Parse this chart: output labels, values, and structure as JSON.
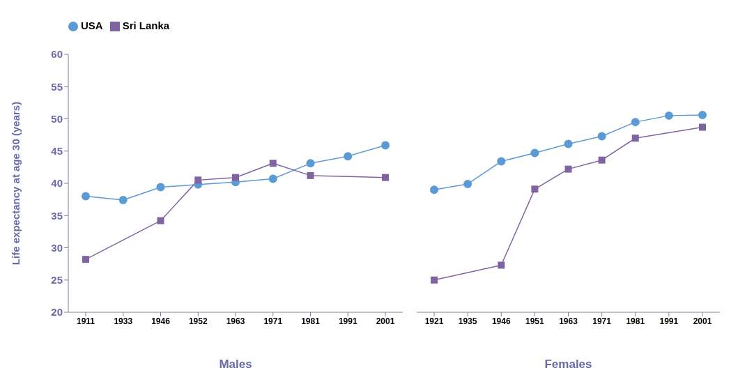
{
  "chart_data": [
    {
      "type": "line",
      "ylabel": "Life expectancy at age 30 (years)",
      "xlabel": "Males",
      "categories": [
        "1911",
        "1933",
        "1946",
        "1952",
        "1963",
        "1971",
        "1981",
        "1991",
        "2001"
      ],
      "ylim": [
        20,
        60
      ],
      "yticks": [
        20,
        25,
        30,
        35,
        40,
        45,
        50,
        55,
        60
      ],
      "legend": "top left",
      "grid": false,
      "series": [
        {
          "name": "USA",
          "color": "#5b9bd5",
          "marker": "circle",
          "values": [
            38.0,
            37.4,
            39.4,
            39.8,
            40.2,
            40.7,
            43.1,
            44.2,
            45.9
          ]
        },
        {
          "name": "Sri Lanka",
          "color": "#8064a2",
          "marker": "square",
          "values": [
            28.2,
            null,
            34.2,
            40.5,
            40.9,
            43.1,
            41.2,
            null,
            40.9
          ]
        }
      ]
    },
    {
      "type": "line",
      "xlabel": "Females",
      "categories": [
        "1921",
        "1935",
        "1946",
        "1951",
        "1963",
        "1971",
        "1981",
        "1991",
        "2001"
      ],
      "ylim": [
        20,
        60
      ],
      "yticks": [
        20,
        25,
        30,
        35,
        40,
        45,
        50,
        55,
        60
      ],
      "tick_labels": "x",
      "grid": false,
      "series": [
        {
          "color": "#5b9bd5",
          "marker": "circle",
          "values": [
            39.0,
            39.9,
            43.4,
            44.7,
            46.1,
            47.3,
            49.5,
            50.5,
            50.6
          ]
        },
        {
          "color": "#8064a2",
          "marker": "square",
          "values": [
            25.0,
            null,
            27.3,
            39.1,
            42.2,
            43.6,
            47.0,
            null,
            48.7
          ]
        }
      ]
    }
  ]
}
